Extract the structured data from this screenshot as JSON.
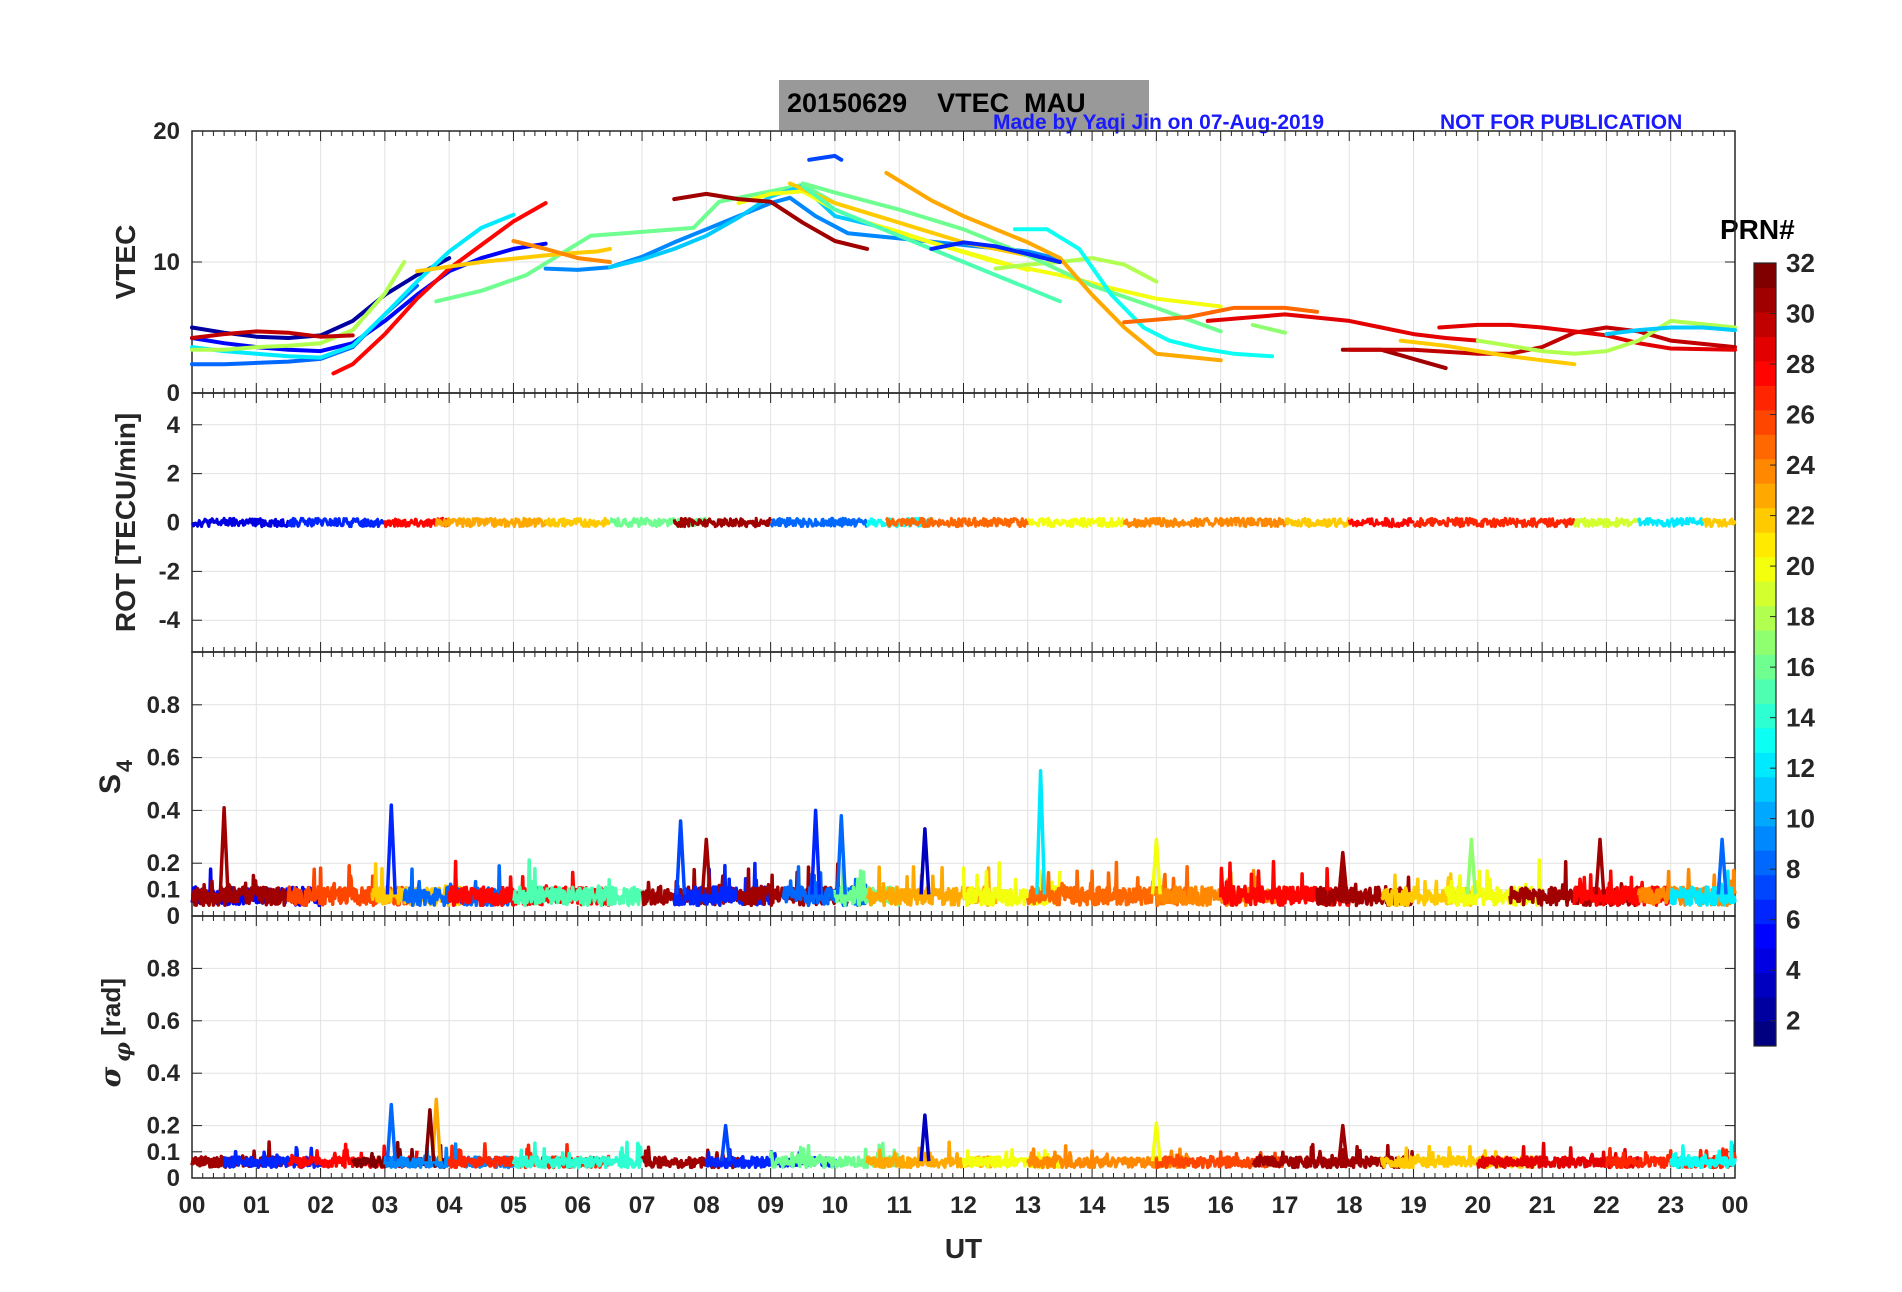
{
  "header": {
    "title": "20150629    VTEC  MAU",
    "credit": "Made by Yaqi Jin on 07-Aug-2019",
    "notice": "NOT FOR PUBLICATION"
  },
  "colorbar": {
    "title": "PRN#",
    "range": [
      1,
      32
    ],
    "ticks": [
      2,
      4,
      6,
      8,
      10,
      12,
      14,
      16,
      18,
      20,
      22,
      24,
      26,
      28,
      30,
      32
    ],
    "colormap": "jet"
  },
  "chart_data": [
    {
      "type": "line",
      "panel": "vtec",
      "ylabel": "VTEC",
      "ylim": [
        0,
        20
      ],
      "yticks": [
        "0",
        "10",
        "20"
      ],
      "xlim": [
        0,
        24
      ],
      "grid": true,
      "series": [
        {
          "prn": 2,
          "x": [
            0,
            0.5,
            1,
            1.5,
            2,
            2.5,
            3,
            3.5,
            4
          ],
          "y": [
            5.0,
            4.6,
            4.3,
            4.2,
            4.4,
            5.5,
            7.5,
            9.0,
            10.3
          ]
        },
        {
          "prn": 5,
          "x": [
            0,
            0.5,
            1,
            1.5,
            2,
            2.5,
            3,
            3.5,
            4,
            4.5,
            5,
            5.5
          ],
          "y": [
            4.2,
            3.8,
            3.5,
            3.3,
            3.2,
            3.8,
            5.5,
            7.5,
            9.3,
            10.3,
            11.0,
            11.4
          ]
        },
        {
          "prn": 8,
          "x": [
            0,
            0.5,
            1,
            1.5,
            2,
            2.5,
            3,
            3.5
          ],
          "y": [
            2.2,
            2.2,
            2.3,
            2.4,
            2.6,
            3.5,
            6.0,
            8.2
          ]
        },
        {
          "prn": 12,
          "x": [
            0,
            0.5,
            1,
            1.5,
            2,
            2.5,
            3,
            3.5,
            4,
            4.5,
            5
          ],
          "y": [
            3.5,
            3.2,
            3.0,
            2.8,
            2.7,
            3.6,
            6.0,
            8.5,
            10.8,
            12.6,
            13.6
          ]
        },
        {
          "prn": 18,
          "x": [
            0,
            0.5,
            1,
            1.5,
            2,
            2.5,
            3,
            3.3
          ],
          "y": [
            3.3,
            3.3,
            3.5,
            3.6,
            3.8,
            4.8,
            7.6,
            10.0
          ]
        },
        {
          "prn": 28,
          "x": [
            2.2,
            2.5,
            3,
            3.5,
            4,
            4.5,
            5,
            5.5
          ],
          "y": [
            1.5,
            2.2,
            4.5,
            7.2,
            9.5,
            11.3,
            13.1,
            14.5
          ]
        },
        {
          "prn": 30,
          "x": [
            0,
            0.5,
            1,
            1.5,
            2,
            2.5
          ],
          "y": [
            4.2,
            4.5,
            4.7,
            4.6,
            4.3,
            4.4
          ]
        },
        {
          "prn": 16,
          "x": [
            3.8,
            4.5,
            5.2,
            5.8,
            6.2,
            7,
            7.8,
            8.2,
            8.6,
            9,
            9.5,
            10
          ],
          "y": [
            7.0,
            7.8,
            9.0,
            10.8,
            12.0,
            12.3,
            12.6,
            14.6,
            15.0,
            15.4,
            15.9,
            14.5
          ]
        },
        {
          "prn": 22,
          "x": [
            3.5,
            4.5,
            5.5,
            6,
            6.3,
            6.5
          ],
          "y": [
            9.3,
            10.0,
            10.5,
            10.7,
            10.8,
            11.0
          ]
        },
        {
          "prn": 24,
          "x": [
            5.0,
            5.5,
            6,
            6.5
          ],
          "y": [
            11.6,
            11.0,
            10.3,
            10.0
          ]
        },
        {
          "prn": 9,
          "x": [
            5.5,
            6,
            6.5,
            7,
            7.5,
            8,
            8.5,
            9,
            9.3,
            9.7,
            10.2,
            11,
            12,
            13,
            13.5
          ],
          "y": [
            9.5,
            9.4,
            9.6,
            10.4,
            11.5,
            12.5,
            13.5,
            14.5,
            14.9,
            13.5,
            12.2,
            11.8,
            11.3,
            10.8,
            10.2
          ]
        },
        {
          "prn": 11,
          "x": [
            6.5,
            7,
            7.5,
            8,
            8.5,
            9,
            9.5,
            10,
            10.6
          ],
          "y": [
            9.6,
            10.2,
            11.0,
            12.0,
            13.4,
            15.0,
            15.8,
            13.5,
            12.8
          ]
        },
        {
          "prn": 20,
          "x": [
            8.5,
            9,
            9.5,
            10,
            10.5,
            11,
            11.5,
            12,
            12.5,
            13
          ],
          "y": [
            14.5,
            15.2,
            15.4,
            14.0,
            13.0,
            12.3,
            11.5,
            10.8,
            10.1,
            9.4
          ]
        },
        {
          "prn": 20,
          "x": [
            10.8,
            11.5,
            12.5,
            13.5,
            14.3,
            15,
            16
          ],
          "y": [
            12.5,
            11.5,
            10.0,
            9.0,
            8.0,
            7.2,
            6.6
          ]
        },
        {
          "prn": 18,
          "x": [
            12.5,
            13,
            13.5,
            14,
            14.5,
            15
          ],
          "y": [
            9.5,
            9.8,
            10.0,
            10.3,
            9.8,
            8.5
          ]
        },
        {
          "prn": 22,
          "x": [
            9.3,
            10,
            11,
            12,
            13
          ],
          "y": [
            16.0,
            14.5,
            13.0,
            11.5,
            10.5
          ]
        },
        {
          "prn": 15,
          "x": [
            9.5,
            10,
            11,
            12,
            13,
            13.5
          ],
          "y": [
            15.8,
            14.0,
            12.0,
            10.0,
            8.0,
            7.0
          ]
        },
        {
          "prn": 16,
          "x": [
            9.5,
            10,
            11,
            12,
            13,
            14,
            15,
            16
          ],
          "y": [
            16.0,
            15.3,
            14.0,
            12.5,
            10.5,
            8.2,
            6.5,
            4.7
          ]
        },
        {
          "prn": 7,
          "x": [
            9.6,
            10,
            10.1
          ],
          "y": [
            17.8,
            18.1,
            17.8
          ]
        },
        {
          "prn": 31,
          "x": [
            7.5,
            8,
            8.5,
            9,
            9.5,
            10,
            10.5
          ],
          "y": [
            14.8,
            15.2,
            14.8,
            14.6,
            13.0,
            11.6,
            11.0
          ]
        },
        {
          "prn": 23,
          "x": [
            10.8,
            11.5,
            12,
            13,
            13.5,
            14,
            14.5,
            15,
            16
          ],
          "y": [
            16.8,
            14.7,
            13.5,
            11.5,
            10.3,
            7.5,
            5.0,
            3.0,
            2.5
          ]
        },
        {
          "prn": 13,
          "x": [
            12.8,
            13.3,
            13.8,
            14.3,
            14.8,
            15.2,
            15.7,
            16.2,
            16.8
          ],
          "y": [
            12.5,
            12.5,
            11.0,
            7.5,
            5.0,
            4.0,
            3.4,
            3.0,
            2.8
          ]
        },
        {
          "prn": 25,
          "x": [
            14.5,
            15.5,
            16.2,
            17,
            17.5
          ],
          "y": [
            5.4,
            5.8,
            6.5,
            6.5,
            6.2
          ]
        },
        {
          "prn": 29,
          "x": [
            15.8,
            17,
            18,
            18.5,
            19,
            19.5,
            20
          ],
          "y": [
            5.5,
            6.0,
            5.5,
            5.0,
            4.5,
            4.2,
            4.0
          ]
        },
        {
          "prn": 17,
          "x": [
            16.5,
            17
          ],
          "y": [
            5.2,
            4.6
          ]
        },
        {
          "prn": 31,
          "x": [
            17.9,
            18.5,
            19,
            19.5
          ],
          "y": [
            3.3,
            3.3,
            2.6,
            1.9
          ]
        },
        {
          "prn": 30,
          "x": [
            18,
            19,
            20,
            20.5,
            21,
            21.5,
            22,
            22.5,
            23,
            24
          ],
          "y": [
            3.3,
            3.3,
            3.0,
            3.0,
            3.5,
            4.6,
            5.0,
            4.7,
            4.0,
            3.5
          ]
        },
        {
          "prn": 29,
          "x": [
            19.4,
            20,
            20.5,
            21,
            21.5,
            22,
            22.5,
            23,
            24
          ],
          "y": [
            5.0,
            5.2,
            5.2,
            5.0,
            4.7,
            4.4,
            3.8,
            3.4,
            3.3
          ]
        },
        {
          "prn": 18,
          "x": [
            20,
            20.5,
            21,
            21.5,
            22,
            22.5,
            23,
            24
          ],
          "y": [
            4.0,
            3.6,
            3.2,
            3.0,
            3.2,
            4.0,
            5.5,
            5.0
          ]
        },
        {
          "prn": 22,
          "x": [
            18.8,
            19.5,
            20,
            20.5,
            21,
            21.5
          ],
          "y": [
            4.0,
            3.6,
            3.2,
            2.8,
            2.5,
            2.2
          ]
        },
        {
          "prn": 11,
          "x": [
            22,
            22.5,
            23,
            23.5,
            24
          ],
          "y": [
            4.5,
            4.8,
            5.0,
            5.0,
            4.8
          ]
        },
        {
          "prn": 6,
          "x": [
            11.5,
            12,
            12.5,
            13,
            13.5
          ],
          "y": [
            11.0,
            11.5,
            11.2,
            10.6,
            10.0
          ]
        }
      ]
    },
    {
      "type": "line",
      "panel": "rot",
      "ylabel": "ROT [TECU/min]",
      "ylim": [
        -5.3,
        5.3
      ],
      "yticks": [
        "-4",
        "-2",
        "0",
        "2",
        "4"
      ],
      "xlim": [
        0,
        24
      ],
      "grid": true,
      "note": "All PRN traces near 0 (about -0.6 to +0.6)"
    },
    {
      "type": "line",
      "panel": "s4",
      "ylabel": "S4",
      "ylim": [
        0,
        1
      ],
      "yticks": [
        "0",
        "0.1",
        "0.2",
        "0.4",
        "0.6",
        "0.8"
      ],
      "xlim": [
        0,
        24
      ],
      "grid": true,
      "spikes": [
        {
          "x": 0.5,
          "y": 0.41,
          "prn": 31
        },
        {
          "x": 3.1,
          "y": 0.42,
          "prn": 6
        },
        {
          "x": 7.6,
          "y": 0.36,
          "prn": 7
        },
        {
          "x": 8.0,
          "y": 0.29,
          "prn": 31
        },
        {
          "x": 9.7,
          "y": 0.4,
          "prn": 6
        },
        {
          "x": 10.1,
          "y": 0.38,
          "prn": 8
        },
        {
          "x": 11.4,
          "y": 0.33,
          "prn": 3
        },
        {
          "x": 13.2,
          "y": 0.55,
          "prn": 12
        },
        {
          "x": 15.0,
          "y": 0.29,
          "prn": 20
        },
        {
          "x": 17.9,
          "y": 0.24,
          "prn": 31
        },
        {
          "x": 19.9,
          "y": 0.29,
          "prn": 17
        },
        {
          "x": 21.9,
          "y": 0.29,
          "prn": 31
        },
        {
          "x": 23.8,
          "y": 0.29,
          "prn": 8
        }
      ]
    },
    {
      "type": "line",
      "panel": "sigma_phi",
      "ylabel": "σ_φ [rad]",
      "ylim": [
        0,
        1
      ],
      "yticks": [
        "0",
        "0.1",
        "0.2",
        "0.4",
        "0.6",
        "0.8"
      ],
      "xlim": [
        0,
        24
      ],
      "xlabel": "UT",
      "xticks": [
        "00",
        "01",
        "02",
        "03",
        "04",
        "05",
        "06",
        "07",
        "08",
        "09",
        "10",
        "11",
        "12",
        "13",
        "14",
        "15",
        "16",
        "17",
        "18",
        "19",
        "20",
        "21",
        "22",
        "23",
        "00"
      ],
      "grid": true,
      "spikes": [
        {
          "x": 3.1,
          "y": 0.28,
          "prn": 8
        },
        {
          "x": 3.8,
          "y": 0.3,
          "prn": 23
        },
        {
          "x": 3.7,
          "y": 0.26,
          "prn": 32
        },
        {
          "x": 11.4,
          "y": 0.24,
          "prn": 3
        },
        {
          "x": 8.3,
          "y": 0.2,
          "prn": 7
        },
        {
          "x": 15.0,
          "y": 0.21,
          "prn": 20
        },
        {
          "x": 17.9,
          "y": 0.2,
          "prn": 31
        }
      ]
    }
  ]
}
